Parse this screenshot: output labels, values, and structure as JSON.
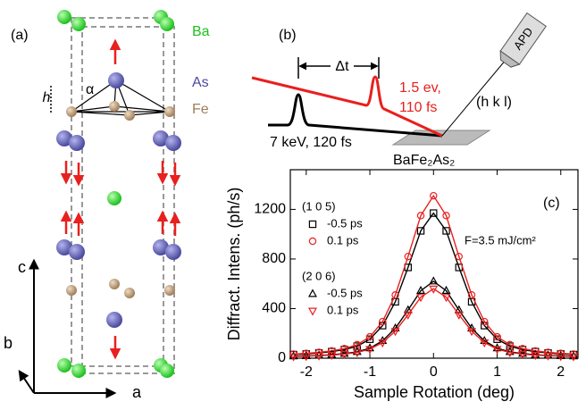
{
  "crystal": {
    "label": "(a)",
    "atoms": [
      "Ba",
      "As",
      "Fe"
    ],
    "height": "h",
    "angle": "α",
    "axes": [
      "c",
      "b",
      "a"
    ]
  },
  "setup": {
    "label": "(b)",
    "delay": "Δt",
    "pump": [
      "1.5 ev,",
      "110 fs"
    ],
    "reflection": "(h k l)",
    "probe": "7 keV, 120 fs",
    "sample": "BaFe₂As₂",
    "detector": "APD"
  },
  "chart_data": {
    "type": "line",
    "panel_label": "(c)",
    "x_label": "Sample Rotation (deg)",
    "y_label": "Diffract. Intens. (ph/s)",
    "annotation": "F=3.5 mJ/cm²",
    "legend_groups": [
      "(1 0 5)",
      "(2 0 6)"
    ],
    "xlim": [
      -2.25,
      2.27
    ],
    "ylim": [
      0,
      1520
    ],
    "xticks": [
      -2,
      -1,
      0,
      1,
      2
    ],
    "yticks": [
      0,
      400,
      800,
      1200
    ],
    "x": [
      -2.2,
      -2,
      -1.8,
      -1.6,
      -1.4,
      -1.2,
      -1,
      -0.8,
      -0.6,
      -0.4,
      -0.2,
      0,
      0.2,
      0.4,
      0.6,
      0.8,
      1,
      1.2,
      1.4,
      1.6,
      1.8,
      2,
      2.2
    ],
    "series": [
      {
        "name": "-0.5 ps",
        "group": 0,
        "color": "#000000",
        "marker": "square",
        "values": [
          29,
          34,
          42,
          53,
          69,
          97,
          153,
          263,
          455,
          732,
          1027,
          1170,
          1027,
          732,
          455,
          263,
          153,
          97,
          69,
          53,
          42,
          34,
          29
        ]
      },
      {
        "name": "0.1 ps",
        "group": 0,
        "color": "#e8201e",
        "marker": "circle",
        "values": [
          33,
          39,
          47,
          59,
          77,
          109,
          172,
          295,
          510,
          820,
          1150,
          1310,
          1150,
          820,
          510,
          295,
          172,
          109,
          77,
          59,
          47,
          39,
          33
        ]
      },
      {
        "name": "-0.5 ps",
        "group": 1,
        "color": "#000000",
        "marker": "triangle-up",
        "values": [
          16,
          18,
          22,
          28,
          37,
          51,
          81,
          140,
          241,
          388,
          544,
          620,
          544,
          388,
          241,
          140,
          81,
          51,
          37,
          28,
          22,
          18,
          16
        ]
      },
      {
        "name": "0.1 ps",
        "group": 1,
        "color": "#e8201e",
        "marker": "triangle-down",
        "values": [
          14,
          16,
          20,
          25,
          33,
          46,
          73,
          126,
          218,
          351,
          492,
          560,
          492,
          351,
          218,
          126,
          73,
          46,
          33,
          25,
          20,
          16,
          14
        ]
      }
    ]
  }
}
